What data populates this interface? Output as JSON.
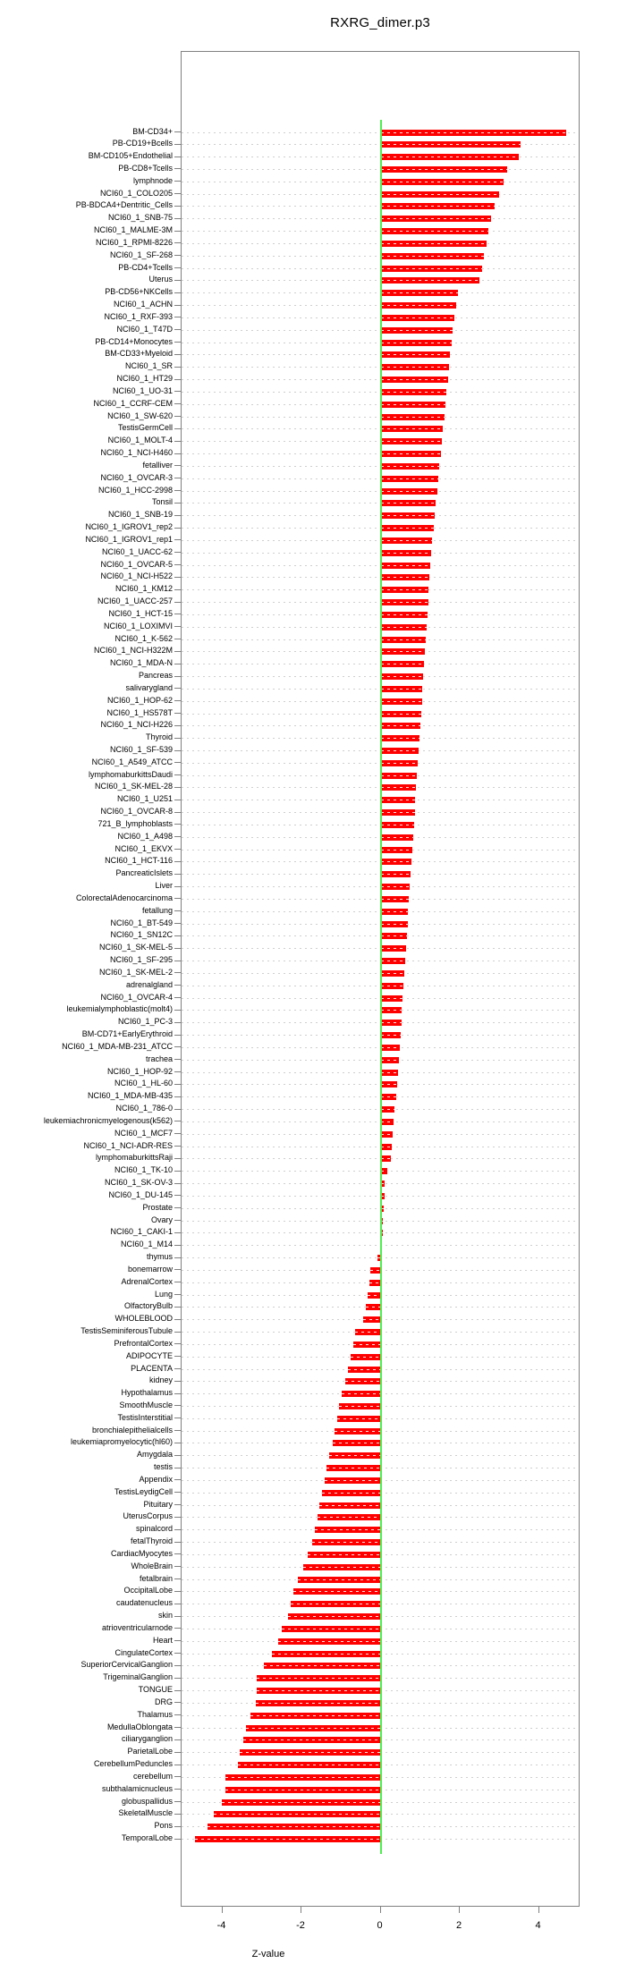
{
  "chart_data": {
    "type": "bar",
    "orientation": "horizontal",
    "title": "RXRG_dimer.p3",
    "xlabel": "Z-value",
    "xlim": [
      -5,
      5
    ],
    "x_ticks": [
      -4,
      -2,
      0,
      2,
      4
    ],
    "grid": "dotted-per-row",
    "bar_color": "#ff0000",
    "zero_line_color": "#4dee4d",
    "axis_color": "#808080",
    "categories": [
      "BM-CD34+",
      "PB-CD19+Bcells",
      "BM-CD105+Endothelial",
      "PB-CD8+Tcells",
      "lymphnode",
      "NCI60_1_COLO205",
      "PB-BDCA4+Dentritic_Cells",
      "NCI60_1_SNB-75",
      "NCI60_1_MALME-3M",
      "NCI60_1_RPMI-8226",
      "NCI60_1_SF-268",
      "PB-CD4+Tcells",
      "Uterus",
      "PB-CD56+NKCells",
      "NCI60_1_ACHN",
      "NCI60_1_RXF-393",
      "NCI60_1_T47D",
      "PB-CD14+Monocytes",
      "BM-CD33+Myeloid",
      "NCI60_1_SR",
      "NCI60_1_HT29",
      "NCI60_1_UO-31",
      "NCI60_1_CCRF-CEM",
      "NCI60_1_SW-620",
      "TestisGermCell",
      "NCI60_1_MOLT-4",
      "NCI60_1_NCI-H460",
      "fetalliver",
      "NCI60_1_OVCAR-3",
      "NCI60_1_HCC-2998",
      "Tonsil",
      "NCI60_1_SNB-19",
      "NCI60_1_IGROV1_rep2",
      "NCI60_1_IGROV1_rep1",
      "NCI60_1_UACC-62",
      "NCI60_1_OVCAR-5",
      "NCI60_1_NCI-H522",
      "NCI60_1_KM12",
      "NCI60_1_UACC-257",
      "NCI60_1_HCT-15",
      "NCI60_1_LOXIMVI",
      "NCI60_1_K-562",
      "NCI60_1_NCI-H322M",
      "NCI60_1_MDA-N",
      "Pancreas",
      "salivarygland",
      "NCI60_1_HOP-62",
      "NCI60_1_HS578T",
      "NCI60_1_NCI-H226",
      "Thyroid",
      "NCI60_1_SF-539",
      "NCI60_1_A549_ATCC",
      "lymphomaburkittsDaudi",
      "NCI60_1_SK-MEL-28",
      "NCI60_1_U251",
      "NCI60_1_OVCAR-8",
      "721_B_lymphoblasts",
      "NCI60_1_A498",
      "NCI60_1_EKVX",
      "NCI60_1_HCT-116",
      "PancreaticIslets",
      "Liver",
      "ColorectalAdenocarcinoma",
      "fetallung",
      "NCI60_1_BT-549",
      "NCI60_1_SN12C",
      "NCI60_1_SK-MEL-5",
      "NCI60_1_SF-295",
      "NCI60_1_SK-MEL-2",
      "adrenalgland",
      "NCI60_1_OVCAR-4",
      "leukemialymphoblastic(molt4)",
      "NCI60_1_PC-3",
      "BM-CD71+EarlyErythroid",
      "NCI60_1_MDA-MB-231_ATCC",
      "trachea",
      "NCI60_1_HOP-92",
      "NCI60_1_HL-60",
      "NCI60_1_MDA-MB-435",
      "NCI60_1_786-0",
      "leukemiachronicmyelogenous(k562)",
      "NCI60_1_MCF7",
      "NCI60_1_NCI-ADR-RES",
      "lymphomaburkittsRaji",
      "NCI60_1_TK-10",
      "NCI60_1_SK-OV-3",
      "NCI60_1_DU-145",
      "Prostate",
      "Ovary",
      "NCI60_1_CAKI-1",
      "NCI60_1_M14",
      "thymus",
      "bonemarrow",
      "AdrenalCortex",
      "Lung",
      "OlfactoryBulb",
      "WHOLEBLOOD",
      "TestisSeminiferousTubule",
      "PrefrontalCortex",
      "ADIPOCYTE",
      "PLACENTA",
      "kidney",
      "Hypothalamus",
      "SmoothMuscle",
      "TestisInterstitial",
      "bronchialepithelialcells",
      "leukemiapromyelocytic(hl60)",
      "Amygdala",
      "testis",
      "Appendix",
      "TestisLeydigCell",
      "Pituitary",
      "UterusCorpus",
      "spinalcord",
      "fetalThyroid",
      "CardiacMyocytes",
      "WholeBrain",
      "fetalbrain",
      "OccipitalLobe",
      "caudatenucleus",
      "skin",
      "atrioventricularnode",
      "Heart",
      "CingulateCortex",
      "SuperiorCervicalGanglion",
      "TrigeminalGanglion",
      "TONGUE",
      "DRG",
      "Thalamus",
      "MedullaOblongata",
      "ciliaryganglion",
      "ParietalLobe",
      "CerebellumPeduncles",
      "cerebellum",
      "subthalamicnucleus",
      "globuspallidus",
      "SkeletalMuscle",
      "Pons",
      "TemporalLobe"
    ],
    "values": [
      4.7,
      3.53,
      3.49,
      3.19,
      3.1,
      2.99,
      2.88,
      2.8,
      2.73,
      2.67,
      2.62,
      2.56,
      2.5,
      1.95,
      1.9,
      1.86,
      1.82,
      1.79,
      1.76,
      1.73,
      1.7,
      1.67,
      1.64,
      1.61,
      1.58,
      1.55,
      1.52,
      1.49,
      1.46,
      1.43,
      1.4,
      1.37,
      1.34,
      1.31,
      1.28,
      1.26,
      1.24,
      1.22,
      1.2,
      1.18,
      1.16,
      1.14,
      1.12,
      1.1,
      1.08,
      1.06,
      1.04,
      1.02,
      1.0,
      0.98,
      0.96,
      0.94,
      0.92,
      0.9,
      0.88,
      0.86,
      0.84,
      0.82,
      0.8,
      0.78,
      0.76,
      0.74,
      0.72,
      0.7,
      0.68,
      0.66,
      0.64,
      0.62,
      0.6,
      0.58,
      0.56,
      0.54,
      0.52,
      0.5,
      0.48,
      0.46,
      0.44,
      0.42,
      0.4,
      0.35,
      0.32,
      0.3,
      0.28,
      0.27,
      0.16,
      0.11,
      0.1,
      0.07,
      0.06,
      0.05,
      0.02,
      -0.09,
      -0.25,
      -0.29,
      -0.32,
      -0.37,
      -0.45,
      -0.65,
      -0.7,
      -0.76,
      -0.82,
      -0.9,
      -0.98,
      -1.04,
      -1.1,
      -1.16,
      -1.22,
      -1.3,
      -1.36,
      -1.42,
      -1.48,
      -1.54,
      -1.6,
      -1.66,
      -1.74,
      -1.85,
      -1.95,
      -2.1,
      -2.2,
      -2.28,
      -2.35,
      -2.5,
      -2.58,
      -2.75,
      -2.96,
      -3.12,
      -3.14,
      -3.16,
      -3.29,
      -3.41,
      -3.46,
      -3.56,
      -3.6,
      -3.91,
      -3.92,
      -4.01,
      -4.21,
      -4.38,
      -4.69
    ]
  }
}
